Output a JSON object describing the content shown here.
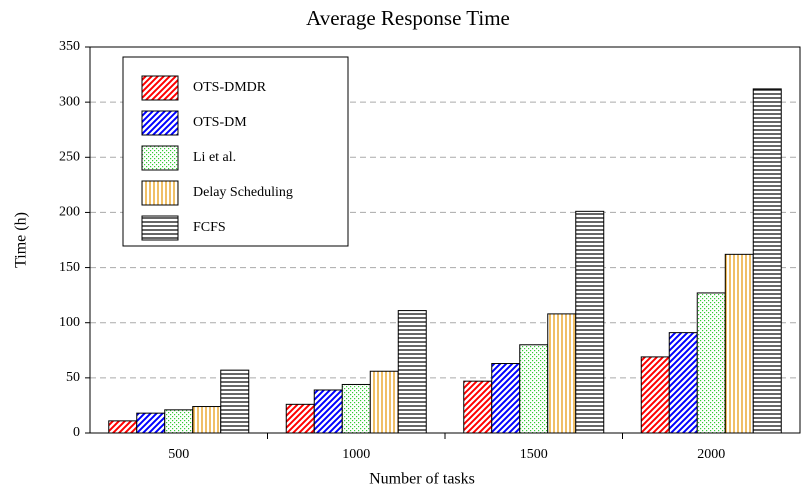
{
  "chart_data": {
    "type": "bar",
    "title": "Average Response Time",
    "x_label": "Number of tasks",
    "y_label": "Time (h)",
    "categories": [
      "500",
      "1000",
      "1500",
      "2000"
    ],
    "series": [
      {
        "name": "OTS-DMDR",
        "color": "#ff0000",
        "hatch": "diagonal",
        "values": [
          11,
          26,
          47,
          69
        ]
      },
      {
        "name": "OTS-DM",
        "color": "#0000ff",
        "hatch": "diagonal",
        "values": [
          18,
          39,
          63,
          91
        ]
      },
      {
        "name": "Li et al.",
        "color": "#33cc33",
        "hatch": "dots",
        "values": [
          21,
          44,
          80,
          127
        ]
      },
      {
        "name": "Delay Scheduling",
        "color": "#e69500",
        "hatch": "vertical",
        "values": [
          24,
          56,
          108,
          162
        ]
      },
      {
        "name": "FCFS",
        "color": "#000000",
        "hatch": "horizontal",
        "values": [
          57,
          111,
          201,
          312
        ]
      }
    ],
    "ylim": [
      0,
      350
    ],
    "yticks": [
      0,
      50,
      100,
      150,
      200,
      250,
      300,
      350
    ],
    "grid": true,
    "legend": "upper left"
  }
}
